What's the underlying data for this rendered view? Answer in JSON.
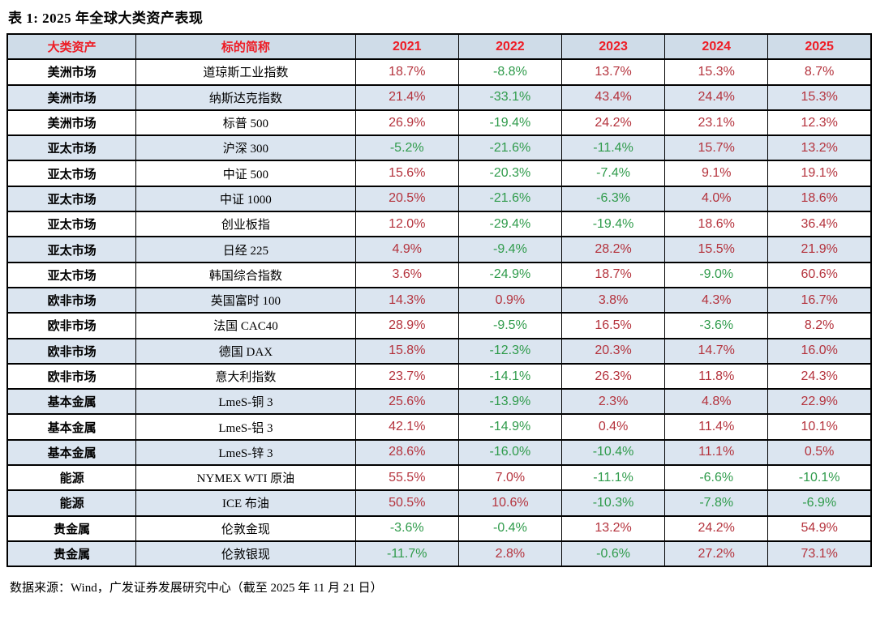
{
  "title": "表 1:  2025 年全球大类资产表现",
  "footer": "数据来源：Wind，广发证券发展研究中心（截至 2025 年 11 月 21 日）",
  "colors": {
    "positive_value": "#b4323c",
    "negative_value": "#2f9b4b",
    "header_text": "#ee1c25",
    "header_background": "#cfdce8",
    "stripe_background": "#dbe5f0",
    "border": "#000000"
  },
  "table": {
    "columns": [
      "大类资产",
      "标的简称",
      "2021",
      "2022",
      "2023",
      "2024",
      "2025"
    ],
    "rows": [
      {
        "category": "美洲市场",
        "name": "道琼斯工业指数",
        "values": [
          "18.7%",
          "-8.8%",
          "13.7%",
          "15.3%",
          "8.7%"
        ]
      },
      {
        "category": "美洲市场",
        "name": "纳斯达克指数",
        "values": [
          "21.4%",
          "-33.1%",
          "43.4%",
          "24.4%",
          "15.3%"
        ]
      },
      {
        "category": "美洲市场",
        "name": "标普 500",
        "values": [
          "26.9%",
          "-19.4%",
          "24.2%",
          "23.1%",
          "12.3%"
        ]
      },
      {
        "category": "亚太市场",
        "name": "沪深 300",
        "values": [
          "-5.2%",
          "-21.6%",
          "-11.4%",
          "15.7%",
          "13.2%"
        ]
      },
      {
        "category": "亚太市场",
        "name": "中证 500",
        "values": [
          "15.6%",
          "-20.3%",
          "-7.4%",
          "9.1%",
          "19.1%"
        ]
      },
      {
        "category": "亚太市场",
        "name": "中证 1000",
        "values": [
          "20.5%",
          "-21.6%",
          "-6.3%",
          "4.0%",
          "18.6%"
        ]
      },
      {
        "category": "亚太市场",
        "name": "创业板指",
        "values": [
          "12.0%",
          "-29.4%",
          "-19.4%",
          "18.6%",
          "36.4%"
        ]
      },
      {
        "category": "亚太市场",
        "name": "日经 225",
        "values": [
          "4.9%",
          "-9.4%",
          "28.2%",
          "15.5%",
          "21.9%"
        ]
      },
      {
        "category": "亚太市场",
        "name": "韩国综合指数",
        "values": [
          "3.6%",
          "-24.9%",
          "18.7%",
          "-9.0%",
          "60.6%"
        ]
      },
      {
        "category": "欧非市场",
        "name": "英国富时 100",
        "values": [
          "14.3%",
          "0.9%",
          "3.8%",
          "4.3%",
          "16.7%"
        ]
      },
      {
        "category": "欧非市场",
        "name": "法国 CAC40",
        "values": [
          "28.9%",
          "-9.5%",
          "16.5%",
          "-3.6%",
          "8.2%"
        ]
      },
      {
        "category": "欧非市场",
        "name": "德国 DAX",
        "values": [
          "15.8%",
          "-12.3%",
          "20.3%",
          "14.7%",
          "16.0%"
        ]
      },
      {
        "category": "欧非市场",
        "name": "意大利指数",
        "values": [
          "23.7%",
          "-14.1%",
          "26.3%",
          "11.8%",
          "24.3%"
        ]
      },
      {
        "category": "基本金属",
        "name": "LmeS-铜 3",
        "values": [
          "25.6%",
          "-13.9%",
          "2.3%",
          "4.8%",
          "22.9%"
        ]
      },
      {
        "category": "基本金属",
        "name": "LmeS-铝 3",
        "values": [
          "42.1%",
          "-14.9%",
          "0.4%",
          "11.4%",
          "10.1%"
        ]
      },
      {
        "category": "基本金属",
        "name": "LmeS-锌 3",
        "values": [
          "28.6%",
          "-16.0%",
          "-10.4%",
          "11.1%",
          "0.5%"
        ]
      },
      {
        "category": "能源",
        "name": "NYMEX WTI 原油",
        "values": [
          "55.5%",
          "7.0%",
          "-11.1%",
          "-6.6%",
          "-10.1%"
        ]
      },
      {
        "category": "能源",
        "name": "ICE 布油",
        "values": [
          "50.5%",
          "10.6%",
          "-10.3%",
          "-7.8%",
          "-6.9%"
        ]
      },
      {
        "category": "贵金属",
        "name": "伦敦金现",
        "values": [
          "-3.6%",
          "-0.4%",
          "13.2%",
          "24.2%",
          "54.9%"
        ]
      },
      {
        "category": "贵金属",
        "name": "伦敦银现",
        "values": [
          "-11.7%",
          "2.8%",
          "-0.6%",
          "27.2%",
          "73.1%"
        ]
      }
    ]
  },
  "chart_data": {
    "type": "table",
    "title": "表 1: 2025 年全球大类资产表现",
    "columns": [
      "大类资产",
      "标的简称",
      "2021",
      "2022",
      "2023",
      "2024",
      "2025"
    ],
    "rows": [
      [
        "美洲市场",
        "道琼斯工业指数",
        18.7,
        -8.8,
        13.7,
        15.3,
        8.7
      ],
      [
        "美洲市场",
        "纳斯达克指数",
        21.4,
        -33.1,
        43.4,
        24.4,
        15.3
      ],
      [
        "美洲市场",
        "标普 500",
        26.9,
        -19.4,
        24.2,
        23.1,
        12.3
      ],
      [
        "亚太市场",
        "沪深 300",
        -5.2,
        -21.6,
        -11.4,
        15.7,
        13.2
      ],
      [
        "亚太市场",
        "中证 500",
        15.6,
        -20.3,
        -7.4,
        9.1,
        19.1
      ],
      [
        "亚太市场",
        "中证 1000",
        20.5,
        -21.6,
        -6.3,
        4.0,
        18.6
      ],
      [
        "亚太市场",
        "创业板指",
        12.0,
        -29.4,
        -19.4,
        18.6,
        36.4
      ],
      [
        "亚太市场",
        "日经 225",
        4.9,
        -9.4,
        28.2,
        15.5,
        21.9
      ],
      [
        "亚太市场",
        "韩国综合指数",
        3.6,
        -24.9,
        18.7,
        -9.0,
        60.6
      ],
      [
        "欧非市场",
        "英国富时 100",
        14.3,
        0.9,
        3.8,
        4.3,
        16.7
      ],
      [
        "欧非市场",
        "法国 CAC40",
        28.9,
        -9.5,
        16.5,
        -3.6,
        8.2
      ],
      [
        "欧非市场",
        "德国 DAX",
        15.8,
        -12.3,
        20.3,
        14.7,
        16.0
      ],
      [
        "欧非市场",
        "意大利指数",
        23.7,
        -14.1,
        26.3,
        11.8,
        24.3
      ],
      [
        "基本金属",
        "LmeS-铜 3",
        25.6,
        -13.9,
        2.3,
        4.8,
        22.9
      ],
      [
        "基本金属",
        "LmeS-铝 3",
        42.1,
        -14.9,
        0.4,
        11.4,
        10.1
      ],
      [
        "基本金属",
        "LmeS-锌 3",
        28.6,
        -16.0,
        -10.4,
        11.1,
        0.5
      ],
      [
        "能源",
        "NYMEX WTI 原油",
        55.5,
        7.0,
        -11.1,
        -6.6,
        -10.1
      ],
      [
        "能源",
        "ICE 布油",
        50.5,
        10.6,
        -10.3,
        -7.8,
        -6.9
      ],
      [
        "贵金属",
        "伦敦金现",
        -3.6,
        -0.4,
        13.2,
        24.2,
        54.9
      ],
      [
        "贵金属",
        "伦敦银现",
        -11.7,
        2.8,
        -0.6,
        27.2,
        73.1
      ]
    ],
    "notes": "正值为暗红色，负值为绿色；units: percent annual return"
  }
}
